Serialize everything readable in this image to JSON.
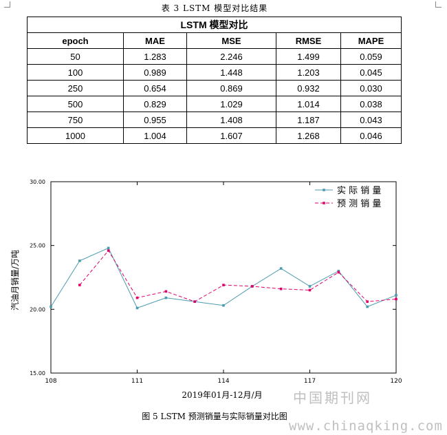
{
  "table": {
    "caption": "表 3 LSTM 模型对比结果",
    "title": "LSTM 模型对比",
    "columns": [
      "epoch",
      "MAE",
      "MSE",
      "RMSE",
      "MAPE"
    ],
    "rows": [
      [
        "50",
        "1.283",
        "2.246",
        "1.499",
        "0.059"
      ],
      [
        "100",
        "0.989",
        "1.448",
        "1.203",
        "0.045"
      ],
      [
        "250",
        "0.654",
        "0.869",
        "0.932",
        "0.030"
      ],
      [
        "500",
        "0.829",
        "1.029",
        "1.014",
        "0.038"
      ],
      [
        "750",
        "0.955",
        "1.408",
        "1.187",
        "0.043"
      ],
      [
        "1000",
        "1.004",
        "1.607",
        "1.268",
        "0.046"
      ]
    ]
  },
  "chart_data": {
    "type": "line",
    "xlabel": "2019年01月-12月/月",
    "ylabel": "汽油月销量/万吨",
    "xlim": [
      108,
      120
    ],
    "ylim": [
      15,
      30
    ],
    "xticks": [
      "108",
      "111",
      "114",
      "117",
      "120"
    ],
    "yticks": [
      "15.00",
      "20.00",
      "25.00",
      "30.00"
    ],
    "grid": false,
    "legend_position": "top-right",
    "series": [
      {
        "name": "实 际 销 量",
        "style": "solid",
        "color": "#4a9bb0",
        "x": [
          108,
          109,
          110,
          111,
          112,
          113,
          114,
          115,
          116,
          117,
          118,
          119,
          120
        ],
        "y": [
          20.2,
          23.8,
          24.8,
          20.1,
          20.9,
          20.6,
          20.3,
          21.8,
          23.2,
          21.8,
          23.0,
          20.2,
          21.1
        ]
      },
      {
        "name": "预 测 销 量",
        "style": "dashed",
        "color": "#e0006a",
        "x": [
          109,
          110,
          111,
          112,
          113,
          114,
          115,
          116,
          117,
          118,
          119,
          120
        ],
        "y": [
          21.9,
          24.6,
          20.9,
          21.4,
          20.6,
          21.9,
          21.8,
          21.6,
          21.5,
          22.9,
          20.6,
          20.8
        ]
      }
    ]
  },
  "figure_caption": "图 5 LSTM 预测销量与实际销量对比图",
  "watermark": {
    "name": "中国期刊网",
    "url": "www.chinaqking.com"
  }
}
